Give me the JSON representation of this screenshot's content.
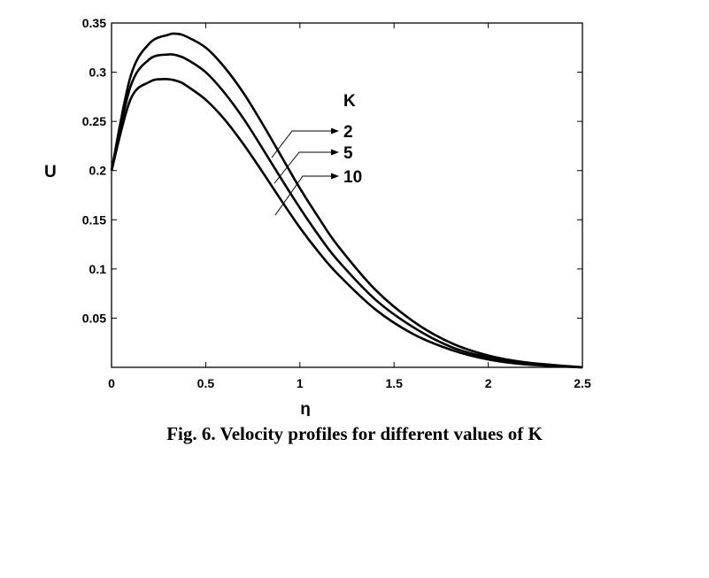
{
  "chart_data": {
    "type": "line",
    "xlabel": "η",
    "ylabel": "U",
    "xlim": [
      0,
      2.5
    ],
    "ylim": [
      0,
      0.35
    ],
    "xticks": [
      "0",
      "0.5",
      "1",
      "1.5",
      "2",
      "2.5"
    ],
    "yticks": [
      "0.05",
      "0.1",
      "0.15",
      "0.2",
      "0.25",
      "0.3",
      "0.35"
    ],
    "legend_title": "K",
    "series": [
      {
        "name": "2",
        "x": [
          0,
          0.1,
          0.2,
          0.3,
          0.35,
          0.4,
          0.5,
          0.6,
          0.7,
          0.8,
          0.9,
          1.0,
          1.1,
          1.2,
          1.4,
          1.6,
          1.8,
          2.0,
          2.2,
          2.5
        ],
        "y": [
          0.2,
          0.295,
          0.329,
          0.338,
          0.339,
          0.336,
          0.325,
          0.305,
          0.279,
          0.248,
          0.215,
          0.182,
          0.152,
          0.124,
          0.079,
          0.047,
          0.025,
          0.012,
          0.005,
          0.0
        ]
      },
      {
        "name": "5",
        "x": [
          0,
          0.1,
          0.2,
          0.3,
          0.35,
          0.4,
          0.5,
          0.6,
          0.7,
          0.8,
          0.9,
          1.0,
          1.1,
          1.2,
          1.4,
          1.6,
          1.8,
          2.0,
          2.2,
          2.5
        ],
        "y": [
          0.2,
          0.285,
          0.313,
          0.318,
          0.317,
          0.313,
          0.3,
          0.279,
          0.253,
          0.223,
          0.192,
          0.162,
          0.134,
          0.109,
          0.069,
          0.041,
          0.021,
          0.01,
          0.004,
          0.0
        ]
      },
      {
        "name": "10",
        "x": [
          0,
          0.1,
          0.2,
          0.28,
          0.35,
          0.4,
          0.5,
          0.6,
          0.7,
          0.8,
          0.9,
          1.0,
          1.1,
          1.2,
          1.4,
          1.6,
          1.8,
          2.0,
          2.2,
          2.5
        ],
        "y": [
          0.2,
          0.272,
          0.29,
          0.293,
          0.291,
          0.286,
          0.272,
          0.252,
          0.227,
          0.199,
          0.17,
          0.142,
          0.117,
          0.095,
          0.059,
          0.034,
          0.018,
          0.008,
          0.003,
          0.0
        ]
      }
    ],
    "grid": false
  },
  "caption": "Fig. 6. Velocity profiles for different values of K"
}
